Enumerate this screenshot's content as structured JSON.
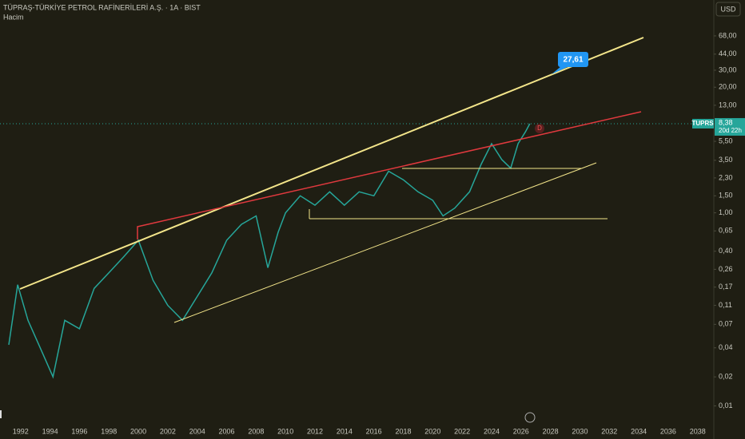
{
  "chart_data": {
    "type": "line",
    "title": "TÜPRAŞ-TÜRKİYE PETROL RAFİNERİLERİ A.Ş. · 1A · BIST",
    "subtitle": "Hacim",
    "currency": "USD",
    "countdown": "20d 22h",
    "log_scale": true,
    "grid": false,
    "x": [
      1991.2,
      1991.8,
      1992.5,
      1993.5,
      1994.2,
      1995,
      1996,
      1997,
      1998,
      1999,
      2000,
      2001,
      2002,
      2003,
      2004,
      2005,
      2006,
      2007,
      2008,
      2008.8,
      2009.5,
      2010,
      2011,
      2012,
      2013,
      2014,
      2015,
      2016,
      2017,
      2018,
      2019,
      2020,
      2020.7,
      2021.5,
      2022.5,
      2023.3,
      2024,
      2024.7,
      2025.3,
      2025.8,
      2026.3,
      2026.6
    ],
    "series": [
      {
        "name": "TUPRS",
        "color": "#26a69a",
        "values": [
          0.043,
          0.18,
          0.077,
          0.035,
          0.02,
          0.077,
          0.063,
          0.165,
          0.24,
          0.35,
          0.52,
          0.2,
          0.11,
          0.077,
          0.136,
          0.24,
          0.52,
          0.76,
          0.93,
          0.27,
          0.63,
          1.0,
          1.5,
          1.2,
          1.65,
          1.2,
          1.65,
          1.5,
          2.7,
          2.2,
          1.65,
          1.35,
          0.93,
          1.12,
          1.65,
          3.2,
          5.2,
          3.55,
          2.9,
          5.2,
          6.9,
          8.38
        ],
        "value_labels": [
          null,
          null,
          null,
          null,
          null,
          null,
          null,
          null,
          null,
          null,
          null,
          null,
          null,
          null,
          null,
          null,
          null,
          null,
          null,
          null,
          null,
          null,
          null,
          null,
          null,
          null,
          null,
          null,
          null,
          null,
          null,
          null,
          null,
          null,
          null,
          null,
          null,
          null,
          null,
          null,
          null,
          "8,38"
        ]
      }
    ],
    "annotations": [
      "27,61",
      "D"
    ],
    "xlim": [
      1990.6,
      2039.1
    ],
    "xticks": [
      1992,
      1994,
      1996,
      1998,
      2000,
      2002,
      2004,
      2006,
      2008,
      2010,
      2012,
      2014,
      2016,
      2018,
      2020,
      2022,
      2024,
      2026,
      2028,
      2030,
      2032,
      2034,
      2036,
      2038
    ],
    "ylim": [
      0.005,
      160
    ],
    "yticks": [
      {
        "value": 68,
        "label": "68,00"
      },
      {
        "value": 44,
        "label": "44,00"
      },
      {
        "value": 30,
        "label": "30,00"
      },
      {
        "value": 20,
        "label": "20,00"
      },
      {
        "value": 13,
        "label": "13,00"
      },
      {
        "value": 5.5,
        "label": "5,50"
      },
      {
        "value": 3.5,
        "label": "3,50"
      },
      {
        "value": 2.3,
        "label": "2,30"
      },
      {
        "value": 1.5,
        "label": "1,50"
      },
      {
        "value": 1,
        "label": "1,00"
      },
      {
        "value": 0.65,
        "label": "0,65"
      },
      {
        "value": 0.4,
        "label": "0,40"
      },
      {
        "value": 0.26,
        "label": "0,26"
      },
      {
        "value": 0.17,
        "label": "0,17"
      },
      {
        "value": 0.11,
        "label": "0,11"
      },
      {
        "value": 0.07,
        "label": "0,07"
      },
      {
        "value": 0.04,
        "label": "0,04"
      },
      {
        "value": 0.02,
        "label": "0,02"
      },
      {
        "value": 0.01,
        "label": "0,01"
      }
    ]
  }
}
